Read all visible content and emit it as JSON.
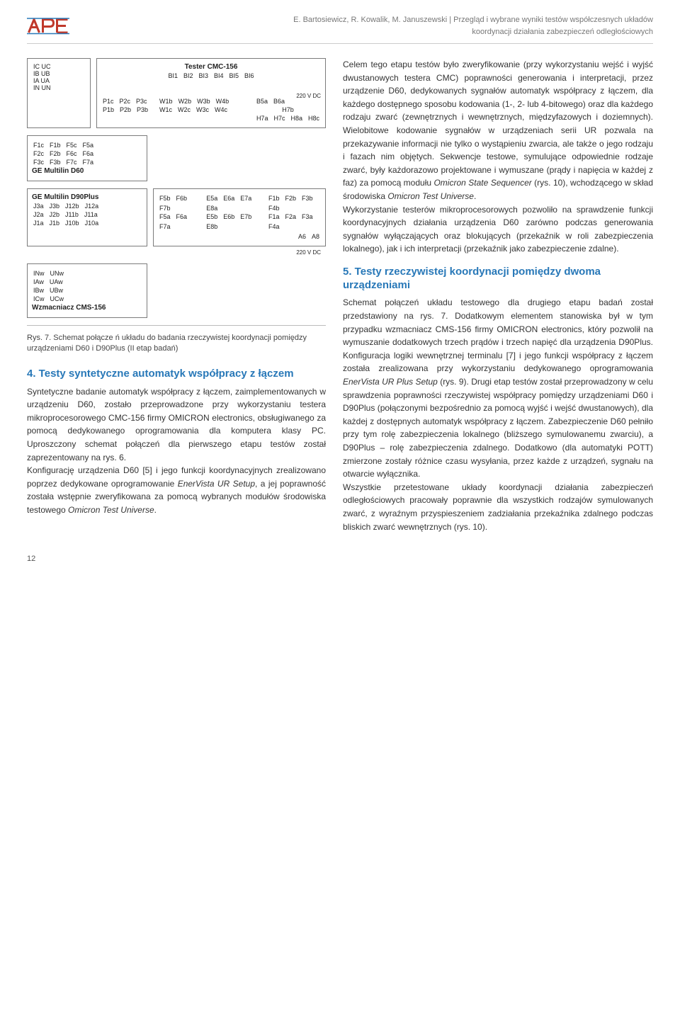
{
  "header": {
    "logo_text": "APE",
    "authors": "E. Bartosiewicz, R. Kowalik, M. Januszewski",
    "subtitle1": "Przegląd i wybrane wyniki testów współczesnych układów",
    "subtitle2": "koordynacji działania zabezpieczeń odległościowych"
  },
  "diagram": {
    "tester_title": "Tester CMC-156",
    "dc_label_1": "220 V DC",
    "dc_label_2": "220 V DC",
    "io_left": [
      "IC  UC",
      "IB  UB",
      "IA  UA",
      "IN  UN"
    ],
    "bi_row": [
      "BI1",
      "BI2",
      "BI3",
      "BI4",
      "BI5",
      "BI6"
    ],
    "d60_title": "GE Multilin D60",
    "d60_rows": [
      [
        "F1c",
        "F1b",
        "F5c",
        "F5a"
      ],
      [
        "F2c",
        "F2b",
        "F6c",
        "F6a"
      ],
      [
        "F3c",
        "F3b",
        "F7c",
        "F7a"
      ]
    ],
    "p_row_1": [
      "P1c",
      "P2c",
      "P3c"
    ],
    "p_row_2": [
      "P1b",
      "P2b",
      "P3b"
    ],
    "w_row_1": [
      "W1b",
      "W2b",
      "W3b",
      "W4b"
    ],
    "w_row_2": [
      "W1c",
      "W2c",
      "W3c",
      "W4c"
    ],
    "b_row": [
      "B5a",
      "B6a"
    ],
    "h_label": "H7b",
    "h_row": [
      "H7a",
      "H7c",
      "H8a",
      "H8c"
    ],
    "d90_title": "GE Multilin D90Plus",
    "d90_rows": [
      [
        "J3a",
        "J3b",
        "J12b",
        "J12a"
      ],
      [
        "J2a",
        "J2b",
        "J11b",
        "J11a"
      ],
      [
        "J1a",
        "J1b",
        "J10b",
        "J10a"
      ]
    ],
    "f_row_1": [
      "F5b",
      "F6b",
      "F7b"
    ],
    "f_row_2": [
      "F5a",
      "F6a",
      "F7a"
    ],
    "e_row_1": [
      "E5a",
      "E6a",
      "E7a",
      "E8a"
    ],
    "e_row_2": [
      "E5b",
      "E6b",
      "E7b",
      "E8b"
    ],
    "ff_row_1": [
      "F1b",
      "F2b",
      "F3b",
      "F4b"
    ],
    "ff_row_2": [
      "F1a",
      "F2a",
      "F3a",
      "F4a"
    ],
    "a_row": [
      "A6",
      "A8"
    ],
    "cms_title": "Wzmacniacz CMS-156",
    "cms_rows": [
      [
        "INw",
        "UNw"
      ],
      [
        "IAw",
        "UAw"
      ],
      [
        "IBw",
        "UBw"
      ],
      [
        "ICw",
        "UCw"
      ]
    ]
  },
  "caption": "Rys. 7. Schemat połącze ń układu do badania rzeczywistej koordynacji pomiędzy urządzeniami D60 i D90Plus (II etap badań)",
  "sec4": {
    "title": "4. Testy syntetyczne automatyk współpracy z łączem",
    "p1": "Syntetyczne badanie automatyk współpracy z łączem, zaimplementowanych w urządzeniu D60, zostało przeprowadzone przy wykorzystaniu testera mikroprocesorowego CMC-156 firmy OMICRON electronics, obsługiwanego za pomocą dedykowanego oprogramowania dla komputera klasy PC. Uproszczony schemat połączeń dla pierwszego etapu testów został zaprezentowany na rys. 6.",
    "p2_a": "Konfigurację urządzenia D60 [5] i jego funkcji koordynacyjnych zrealizowano poprzez dedykowane oprogramowanie ",
    "p2_em1": "EnerVista UR Setup",
    "p2_b": ", a jej poprawność została wstępnie zweryfikowana za pomocą wybranych modułów środowiska testowego ",
    "p2_em2": "Omicron Test Universe",
    "p2_c": "."
  },
  "right": {
    "p1_a": "Celem tego etapu testów było zweryfikowanie (przy wykorzystaniu wejść i wyjść dwustanowych testera CMC) poprawności generowania i interpretacji, przez urządzenie D60, dedykowanych sygnałów automatyk współpracy z łączem, dla każdego dostępnego sposobu kodowania (1-, 2- lub 4-bitowego) oraz dla każdego rodzaju zwarć (zewnętrznych i wewnętrznych, międzyfazowych i doziemnych). Wielobitowe kodowanie sygnałów w urządzeniach serii UR pozwala na przekazywanie informacji nie tylko o wystąpieniu zwarcia, ale także o jego rodzaju i fazach nim objętych. Sekwencje testowe, symulujące odpowiednie rodzaje zwarć, były każdorazowo projektowane i wymuszane (prądy i napięcia w każdej z faz) za pomocą modułu ",
    "p1_em1": "Omicron State Sequencer",
    "p1_b": " (rys. 10), wchodzącego w skład środowiska ",
    "p1_em2": "Omicron Test Universe",
    "p1_c": ".",
    "p2": "Wykorzystanie testerów mikroprocesorowych pozwoliło na sprawdzenie funkcji koordynacyjnych działania urządzenia D60 zarówno podczas generowania sygnałów wyłączających oraz blokujących (przekaźnik w roli zabezpieczenia lokalnego), jak i ich interpretacji (przekaźnik jako zabezpieczenie zdalne)."
  },
  "sec5": {
    "title": "5. Testy rzeczywistej koordynacji pomiędzy dwoma urządzeniami",
    "p1_a": "Schemat połączeń układu testowego dla drugiego etapu badań został przedstawiony na rys. 7. Dodatkowym elementem stanowiska był w tym przypadku wzmacniacz CMS-156 firmy OMICRON electronics, który pozwolił na wymuszanie dodatkowych trzech prądów i trzech napięć dla urządzenia D90Plus. Konfiguracja logiki wewnętrznej terminalu [7] i jego funkcji współpracy z łączem została zrealizowana przy wykorzystaniu dedykowanego oprogramowania ",
    "p1_em1": "EnerVista UR Plus Setup",
    "p1_b": " (rys. 9). Drugi etap testów został przeprowadzony w celu sprawdzenia poprawności rzeczywistej współpracy pomiędzy urządzeniami D60 i D90Plus (połączonymi bezpośrednio za pomocą wyjść i wejść dwustanowych), dla każdej z dostępnych automatyk współpracy z łączem. Zabezpieczenie D60 pełniło przy tym rolę zabezpieczenia lokalnego (bliższego symulowanemu zwarciu), a D90Plus – rolę zabezpieczenia zdalnego. Dodatkowo (dla automatyki POTT) zmierzone zostały różnice czasu wysyłania, przez każde z urządzeń, sygnału na otwarcie wyłącznika.",
    "p2": "Wszystkie przetestowane układy koordynacji działania zabezpieczeń odległościowych pracowały poprawnie dla wszystkich rodzajów symulowanych zwarć, z wyraźnym przyspieszeniem zadziałania przekaźnika zdalnego podczas bliskich zwarć wewnętrznych (rys. 10)."
  },
  "pagenum": "12",
  "colors": {
    "accent": "#2878b8",
    "logo_red": "#c0392b",
    "meta": "#777777",
    "border": "#7b7b7b"
  }
}
